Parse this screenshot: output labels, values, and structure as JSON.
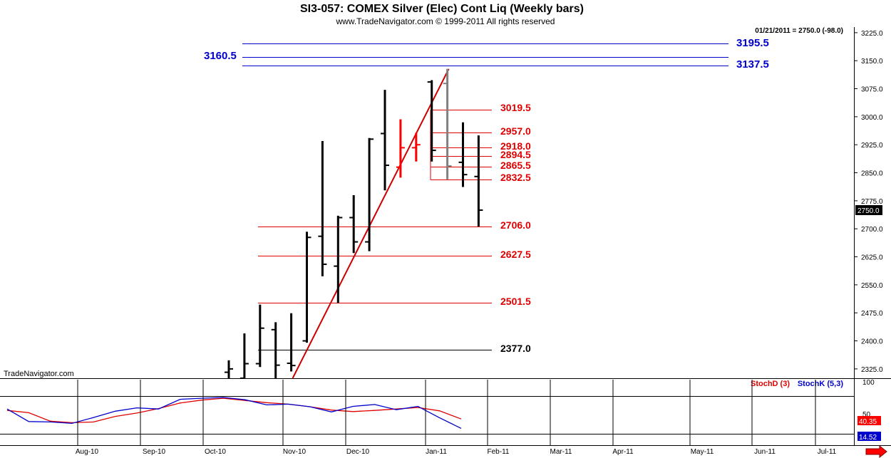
{
  "header": {
    "title": "SI3-057:  COMEX Silver (Elec) Cont Liq  (Weekly bars)",
    "subtitle": "www.TradeNavigator.com © 1999-2011 All rights reserved",
    "last_info": "01/21/2011 = 2750.0 (-98.0)",
    "watermark": "TradeNavigator.com"
  },
  "colors": {
    "price_bar": "#000000",
    "highlight_bar": "#ff0000",
    "gray_bar": "#808080",
    "trendline": "#cc0000",
    "level_red": "#e00000",
    "level_blue": "#0000cc",
    "level_black": "#000000",
    "stoch_d": "#e00000",
    "stoch_k": "#0000cc",
    "grid": "#000000",
    "scroll_arrow": "#ff0000"
  },
  "chart_data": {
    "type": "ohlc",
    "title": "SI3-057:  COMEX Silver (Elec) Cont Liq  (Weekly bars)",
    "ylim": [
      2300,
      3240
    ],
    "y_ticks": [
      "3225.0",
      "3150.0",
      "3075.0",
      "3000.0",
      "2925.0",
      "2850.0",
      "2775.0",
      "2700.0",
      "2625.0",
      "2550.0",
      "2475.0",
      "2400.0",
      "2325.0"
    ],
    "x_ticks": [
      "Aug-10",
      "Sep-10",
      "Oct-10",
      "Nov-10",
      "Dec-10",
      "Jan-11",
      "Feb-11",
      "Mar-11",
      "Apr-11",
      "May-11",
      "Jun-11",
      "Jul-11"
    ],
    "last_price_label": "2750.0",
    "bars": [
      {
        "x": 0,
        "open": 2316,
        "high": 2348,
        "low": 2300,
        "close": 2325,
        "color": "price_bar"
      },
      {
        "x": 1,
        "open": 2300,
        "high": 2420,
        "low": 2300,
        "close": 2339,
        "color": "price_bar"
      },
      {
        "x": 2,
        "open": 2339,
        "high": 2497,
        "low": 2330,
        "close": 2434,
        "color": "price_bar"
      },
      {
        "x": 3,
        "open": 2430,
        "high": 2450,
        "low": 2300,
        "close": 2335,
        "color": "price_bar"
      },
      {
        "x": 4,
        "open": 2340,
        "high": 2474,
        "low": 2318,
        "close": 2334,
        "color": "price_bar"
      },
      {
        "x": 5,
        "open": 2400,
        "high": 2692,
        "low": 2395,
        "close": 2677,
        "color": "price_bar"
      },
      {
        "x": 6,
        "open": 2680,
        "high": 2935,
        "low": 2573,
        "close": 2605,
        "color": "price_bar"
      },
      {
        "x": 7,
        "open": 2600,
        "high": 2735,
        "low": 2501.5,
        "close": 2730,
        "color": "price_bar"
      },
      {
        "x": 8,
        "open": 2730,
        "high": 2790,
        "low": 2635,
        "close": 2665,
        "color": "price_bar"
      },
      {
        "x": 9,
        "open": 2665,
        "high": 2943,
        "low": 2640,
        "close": 2940,
        "color": "price_bar"
      },
      {
        "x": 10,
        "open": 2955,
        "high": 3072,
        "low": 2803,
        "close": 2870,
        "color": "price_bar"
      },
      {
        "x": 11,
        "open": 2865,
        "high": 2993,
        "low": 2837,
        "close": 2917,
        "color": "highlight_bar"
      },
      {
        "x": 12,
        "open": 2917,
        "high": 2957,
        "low": 2880,
        "close": 2925,
        "color": "highlight_bar"
      },
      {
        "x": 13,
        "open": 3093,
        "high": 3098,
        "low": 2880,
        "close": 2910,
        "color": "price_bar"
      },
      {
        "x": 14,
        "open": 3089,
        "high": 3128,
        "low": 2832.5,
        "close": 2868,
        "color": "gray_bar"
      },
      {
        "x": 15,
        "open": 2878,
        "high": 2985,
        "low": 2812,
        "close": 2845,
        "color": "price_bar"
      },
      {
        "x": 16,
        "open": 2840,
        "high": 2950,
        "low": 2706,
        "close": 2750,
        "color": "price_bar"
      }
    ],
    "levels": [
      {
        "value": "3195.5",
        "color": "level_blue",
        "side": "right",
        "big": true
      },
      {
        "value": "3160.5",
        "color": "level_blue",
        "side": "left",
        "big": true
      },
      {
        "value": "3137.5",
        "color": "level_blue",
        "side": "right",
        "big": true
      },
      {
        "value": "3019.5",
        "color": "level_red",
        "side": "right",
        "big": false
      },
      {
        "value": "2957.0",
        "color": "level_red",
        "side": "right",
        "big": false
      },
      {
        "value": "2918.0",
        "color": "level_red",
        "side": "right",
        "big": false
      },
      {
        "value": "2894.5",
        "color": "level_red",
        "side": "right",
        "big": false
      },
      {
        "value": "2865.5",
        "color": "level_red",
        "side": "right",
        "big": false
      },
      {
        "value": "2832.5",
        "color": "level_red",
        "side": "right",
        "big": false
      },
      {
        "value": "2706.0",
        "color": "level_red",
        "side": "right",
        "big": false
      },
      {
        "value": "2627.5",
        "color": "level_red",
        "side": "right",
        "big": false
      },
      {
        "value": "2501.5",
        "color": "level_red",
        "side": "right",
        "big": false
      },
      {
        "value": "2377.0",
        "color": "level_black",
        "side": "right",
        "big": false
      }
    ],
    "trendline": {
      "from": {
        "x": 4,
        "value": 2300
      },
      "to": {
        "x": 14,
        "value": 3128
      }
    },
    "stochastic": {
      "ylim": [
        0,
        100
      ],
      "y_ticks": [
        "100",
        "50"
      ],
      "labels": [
        "StochD (3)",
        "StochK (5,3)"
      ],
      "last_d": "40.35",
      "last_k": "14.52",
      "d_series": [
        63,
        57,
        34,
        30,
        32,
        47,
        56,
        68,
        83,
        91,
        96,
        90,
        84,
        80,
        73,
        64,
        60,
        63,
        67,
        71,
        62,
        40
      ],
      "k_series": [
        67,
        33,
        32,
        28,
        44,
        61,
        70,
        67,
        93,
        96,
        98,
        92,
        78,
        80,
        73,
        59,
        74,
        79,
        65,
        74,
        43,
        14.52
      ]
    }
  }
}
